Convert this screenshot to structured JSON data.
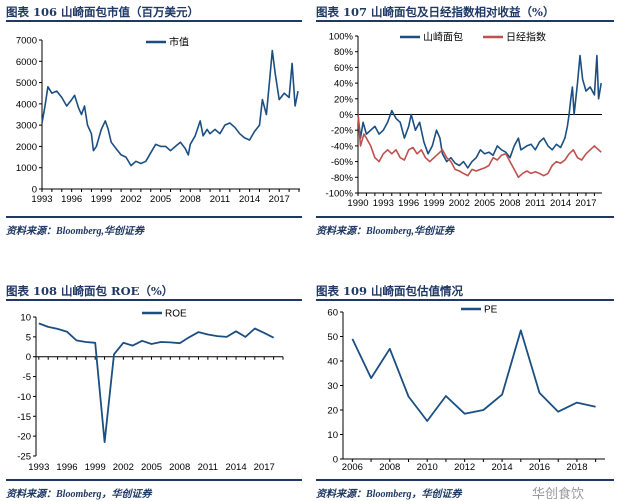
{
  "watermark": "华创食饮",
  "colors": {
    "title": "#1f3864",
    "navy": "#1b4f82",
    "red": "#c0504d"
  },
  "chart_data": [
    {
      "id": "c106",
      "type": "line",
      "title": "图表 106  山崎面包市值（百万美元）",
      "source": "资料来源：Bloomberg,华创证券",
      "ylim": [
        0,
        7000
      ],
      "yticks": [
        0,
        1000,
        2000,
        3000,
        4000,
        5000,
        6000,
        7000
      ],
      "ytick_labels": [
        "0",
        "1000",
        "2000",
        "3000",
        "4000",
        "5000",
        "6000",
        "7000"
      ],
      "xlim": [
        1993,
        2019.1
      ],
      "xticks": [
        1993,
        1996,
        1999,
        2002,
        2005,
        2008,
        2011,
        2014,
        2017
      ],
      "xtick_labels": [
        "1993",
        "1996",
        "1999",
        "2002",
        "2005",
        "2008",
        "2011",
        "2014",
        "2017"
      ],
      "legend": "top-center",
      "series": [
        {
          "name": "市值",
          "color": "#1b4f82",
          "x": [
            1993.0,
            1993.3,
            1993.6,
            1994,
            1994.5,
            1995,
            1995.5,
            1996,
            1996.3,
            1996.7,
            1997,
            1997.3,
            1997.6,
            1998,
            1998.2,
            1998.5,
            1999,
            1999.4,
            1999.7,
            2000,
            2000.5,
            2001,
            2001.5,
            2002,
            2002.5,
            2003,
            2003.5,
            2004,
            2004.5,
            2005,
            2005.5,
            2006,
            2006.5,
            2007,
            2007.5,
            2007.8,
            2008,
            2008.5,
            2009,
            2009.3,
            2009.7,
            2010,
            2010.5,
            2011,
            2011.5,
            2012,
            2012.5,
            2013,
            2013.5,
            2014,
            2014.5,
            2015,
            2015.3,
            2015.7,
            2016,
            2016.3,
            2016.6,
            2017,
            2017.5,
            2018,
            2018.3,
            2018.6,
            2018.9
          ],
          "y": [
            3100,
            3900,
            4800,
            4500,
            4600,
            4300,
            3900,
            4200,
            4400,
            3800,
            3500,
            3900,
            3000,
            2600,
            1800,
            2000,
            2800,
            3200,
            2800,
            2200,
            1900,
            1600,
            1500,
            1100,
            1300,
            1200,
            1300,
            1700,
            2100,
            2000,
            2000,
            1800,
            2000,
            2200,
            1900,
            1600,
            2100,
            2500,
            3200,
            2500,
            2800,
            2600,
            2800,
            2600,
            3000,
            3100,
            2900,
            2600,
            2400,
            2300,
            2700,
            3000,
            4200,
            3500,
            5000,
            6500,
            5400,
            4200,
            4500,
            4300,
            5900,
            3900,
            4600
          ]
        }
      ]
    },
    {
      "id": "c107",
      "type": "line",
      "title": "图表 107  山崎面包及日经指数相对收益（%）",
      "source": "资料来源：Bloomberg,华创证券",
      "ylim": [
        -100,
        100
      ],
      "yticks": [
        -100,
        -80,
        -60,
        -40,
        -20,
        0,
        20,
        40,
        60,
        80,
        100
      ],
      "ytick_labels": [
        "-100%",
        "-80%",
        "-60%",
        "-40%",
        "-20%",
        "0%",
        "20%",
        "40%",
        "60%",
        "80%",
        "100%"
      ],
      "xlim": [
        1990,
        2018.9
      ],
      "xticks": [
        1990,
        1993,
        1996,
        1999,
        2002,
        2005,
        2008,
        2011,
        2014,
        2017
      ],
      "xtick_labels": [
        "1990",
        "1993",
        "1996",
        "1999",
        "2002",
        "2005",
        "2008",
        "2011",
        "2014",
        "2017"
      ],
      "legend": "top",
      "series": [
        {
          "name": "山崎面包",
          "color": "#1b4f82",
          "x": [
            1990,
            1990.3,
            1990.6,
            1991,
            1992,
            1992.5,
            1993,
            1993.5,
            1994,
            1994.5,
            1995,
            1995.5,
            1996,
            1996.3,
            1996.8,
            1997.3,
            1997.8,
            1998.3,
            1998.8,
            1999.3,
            1999.7,
            2000,
            2000.5,
            2001,
            2001.5,
            2002,
            2002.5,
            2003,
            2003.5,
            2004,
            2004.5,
            2005,
            2005.5,
            2006,
            2006.5,
            2007,
            2007.5,
            2008,
            2008.5,
            2009,
            2009.3,
            2010,
            2010.5,
            2011,
            2011.5,
            2012,
            2012.5,
            2013,
            2013.5,
            2014,
            2014.5,
            2014.8,
            2015,
            2015.2,
            2015.4,
            2015.6,
            2016,
            2016.3,
            2016.6,
            2017,
            2017.5,
            2018,
            2018.3,
            2018.5,
            2018.8
          ],
          "y": [
            0,
            -30,
            -10,
            -25,
            -15,
            -25,
            -20,
            -10,
            5,
            -5,
            -10,
            -30,
            -15,
            0,
            -20,
            -10,
            -35,
            -50,
            -40,
            -20,
            -30,
            -50,
            -60,
            -55,
            -62,
            -65,
            -60,
            -68,
            -60,
            -55,
            -45,
            -50,
            -48,
            -52,
            -40,
            -45,
            -48,
            -55,
            -40,
            -30,
            -45,
            -40,
            -38,
            -45,
            -35,
            -30,
            -40,
            -45,
            -38,
            -42,
            -30,
            -15,
            0,
            20,
            35,
            0,
            40,
            75,
            45,
            30,
            35,
            25,
            75,
            20,
            40
          ]
        },
        {
          "name": "日经指数",
          "color": "#c0504d",
          "x": [
            1990,
            1990.3,
            1990.7,
            1991,
            1991.5,
            1992,
            1992.5,
            1993,
            1993.5,
            1994,
            1994.5,
            1995,
            1995.5,
            1996,
            1996.5,
            1997,
            1997.5,
            1998,
            1998.5,
            1999,
            1999.5,
            2000,
            2000.5,
            2001,
            2001.5,
            2002,
            2002.5,
            2003,
            2003.5,
            2004,
            2004.5,
            2005,
            2005.5,
            2006,
            2006.5,
            2007,
            2007.5,
            2008,
            2008.5,
            2009,
            2009.5,
            2010,
            2010.5,
            2011,
            2011.5,
            2012,
            2012.5,
            2013,
            2013.5,
            2014,
            2014.5,
            2015,
            2015.5,
            2016,
            2016.5,
            2017,
            2017.5,
            2018,
            2018.5,
            2018.8
          ],
          "y": [
            0,
            -40,
            -25,
            -30,
            -40,
            -55,
            -60,
            -50,
            -45,
            -50,
            -45,
            -55,
            -58,
            -45,
            -42,
            -50,
            -45,
            -55,
            -60,
            -55,
            -50,
            -45,
            -55,
            -60,
            -70,
            -72,
            -75,
            -78,
            -70,
            -72,
            -70,
            -68,
            -65,
            -55,
            -58,
            -52,
            -50,
            -60,
            -70,
            -80,
            -75,
            -72,
            -75,
            -73,
            -75,
            -78,
            -75,
            -65,
            -60,
            -62,
            -58,
            -50,
            -45,
            -55,
            -58,
            -50,
            -45,
            -40,
            -45,
            -48
          ]
        }
      ]
    },
    {
      "id": "c108",
      "type": "line",
      "title": "图表 108  山崎面包 ROE（%）",
      "source": "资料来源：Bloomberg，华创证券",
      "ylim": [
        -25,
        10
      ],
      "yticks": [
        -25,
        -20,
        -15,
        -10,
        -5,
        0,
        5,
        10
      ],
      "ytick_labels": [
        "-25",
        "-20",
        "-15",
        "-10",
        "-5",
        "0",
        "5",
        "10"
      ],
      "xlim": [
        1992.7,
        2019
      ],
      "xticks": [
        1993,
        1996,
        1999,
        2002,
        2005,
        2008,
        2011,
        2014,
        2017
      ],
      "xtick_labels": [
        "1993",
        "1996",
        "1999",
        "2002",
        "2005",
        "2008",
        "2011",
        "2014",
        "2017"
      ],
      "legend": "top-center",
      "series": [
        {
          "name": "ROE",
          "color": "#1b4f82",
          "x": [
            1993,
            1994,
            1995,
            1996,
            1997,
            1998,
            1999,
            2000,
            2001,
            2002,
            2003,
            2004,
            2005,
            2006,
            2007,
            2008,
            2009,
            2010,
            2011,
            2012,
            2013,
            2014,
            2015,
            2016,
            2017,
            2018
          ],
          "y": [
            8.4,
            7.5,
            7.0,
            6.3,
            4.1,
            3.7,
            3.5,
            -21.5,
            0.6,
            3.5,
            2.8,
            4.0,
            3.2,
            3.7,
            3.6,
            3.4,
            4.9,
            6.2,
            5.6,
            5.2,
            5.0,
            6.4,
            5.0,
            7.1,
            6.0,
            4.8
          ]
        }
      ]
    },
    {
      "id": "c109",
      "type": "line",
      "title": "图表 109  山崎面包估值情况",
      "source": "资料来源：Bloomberg，华创证券",
      "ylim": [
        0,
        60
      ],
      "yticks": [
        0,
        10,
        20,
        30,
        40,
        50,
        60
      ],
      "ytick_labels": [
        "0",
        "10",
        "20",
        "30",
        "40",
        "50",
        "60"
      ],
      "xlim": [
        2005.5,
        2019.5
      ],
      "xticks": [
        2006,
        2008,
        2010,
        2012,
        2014,
        2016,
        2018
      ],
      "xtick_labels": [
        "2006",
        "2008",
        "2010",
        "2012",
        "2014",
        "2016",
        "2018"
      ],
      "legend": "top-center",
      "series": [
        {
          "name": "PE",
          "color": "#1b4f82",
          "x": [
            2006,
            2007,
            2008,
            2009,
            2010,
            2011,
            2012,
            2013,
            2014,
            2015,
            2016,
            2017,
            2018,
            2019
          ],
          "y": [
            49,
            33,
            45,
            25.5,
            15.5,
            25.7,
            18.5,
            20,
            26.3,
            52.5,
            27,
            19.3,
            23,
            21.3
          ]
        }
      ]
    }
  ]
}
